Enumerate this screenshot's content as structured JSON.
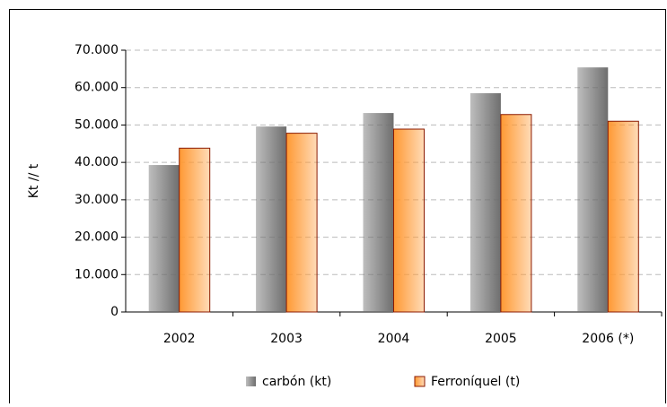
{
  "chart_data": {
    "type": "bar",
    "y_label": "Kt // t",
    "categories": [
      "2002",
      "2003",
      "2004",
      "2005",
      "2006 (*)"
    ],
    "series": [
      {
        "name": "carbón (kt)",
        "color": "#6e6e6e",
        "values": [
          39300,
          49600,
          53200,
          58500,
          65400
        ]
      },
      {
        "name": "Ferroníquel (t)",
        "color": "#ff9933",
        "values": [
          43800,
          47800,
          48900,
          52800,
          51000
        ]
      }
    ],
    "ylim": [
      0,
      70000
    ],
    "yticks": [
      0,
      {
        "value": 10000,
        "label": "10.000"
      },
      {
        "value": 20000,
        "label": "20.000"
      },
      {
        "value": 30000,
        "label": "30.000"
      },
      {
        "value": 40000,
        "label": "40.000"
      },
      {
        "value": 50000,
        "label": "50.000"
      },
      {
        "value": 60000,
        "label": "60.000"
      },
      {
        "value": 70000,
        "label": "70.000"
      }
    ],
    "grid": true,
    "legend": "bottom"
  }
}
